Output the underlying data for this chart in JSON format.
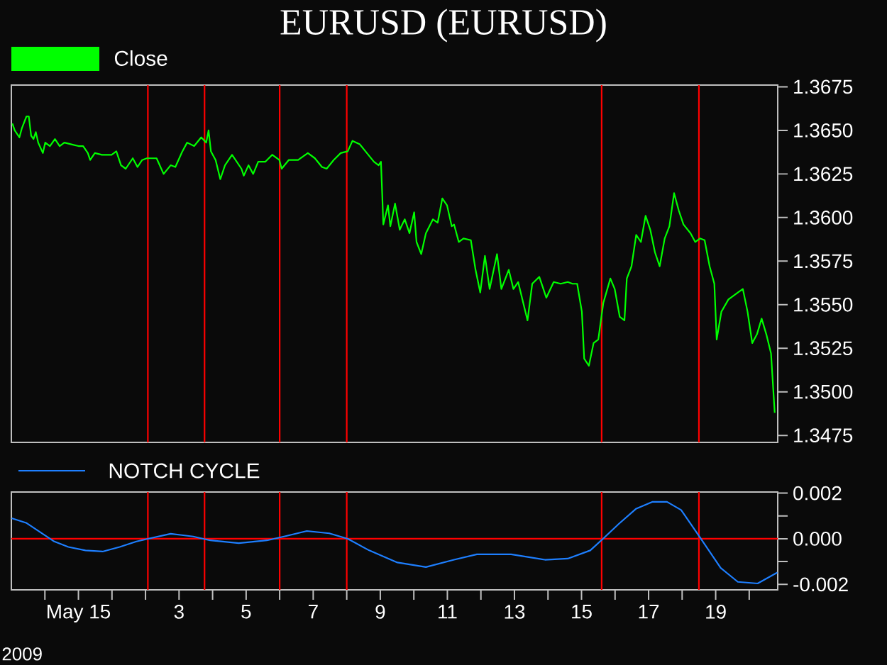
{
  "chart_data": [
    {
      "type": "line",
      "title": "EURUSD (EURUSD)",
      "x": [
        -1.97,
        -1.9,
        -1.76,
        -1.69,
        -1.55,
        -1.48,
        -1.41,
        -1.34,
        -1.27,
        -1.2,
        -1.06,
        -0.99,
        -0.85,
        -0.7,
        -0.56,
        -0.42,
        -0.21,
        0,
        0.14,
        0.28,
        0.35,
        0.49,
        0.7,
        0.99,
        1.13,
        1.27,
        1.41,
        1.62,
        1.76,
        1.9,
        2.04,
        2.33,
        2.54,
        2.75,
        2.89,
        3.1,
        3.24,
        3.45,
        3.66,
        3.81,
        3.88,
        3.95,
        4.09,
        4.23,
        4.37,
        4.58,
        4.72,
        4.86,
        4.93,
        5.07,
        5.21,
        5.36,
        5.57,
        5.78,
        5.99,
        6.06,
        6.27,
        6.55,
        6.84,
        7.05,
        7.26,
        7.4,
        7.61,
        7.82,
        8.03,
        8.17,
        8.39,
        8.6,
        8.81,
        8.95,
        9.02,
        9.06,
        9.09,
        9.23,
        9.3,
        9.44,
        9.58,
        9.73,
        9.87,
        10.01,
        10.08,
        10.22,
        10.36,
        10.57,
        10.71,
        10.85,
        10.99,
        11.13,
        11.2,
        11.34,
        11.48,
        11.7,
        11.84,
        11.98,
        12.12,
        12.26,
        12.48,
        12.61,
        12.83,
        12.97,
        13.11,
        13.39,
        13.53,
        13.74,
        13.95,
        14.17,
        14.38,
        14.59,
        14.73,
        14.87,
        15.01,
        15.08,
        15.22,
        15.36,
        15.5,
        15.65,
        15.86,
        15.99,
        16.14,
        16.28,
        16.35,
        16.49,
        16.63,
        16.77,
        16.91,
        17.05,
        17.19,
        17.33,
        17.48,
        17.62,
        17.76,
        17.9,
        18.04,
        18.25,
        18.39,
        18.53,
        18.67,
        18.82,
        18.96,
        19.03,
        19.17,
        19.38,
        19.66,
        19.81,
        19.95,
        20.09,
        20.23,
        20.37,
        20.51,
        20.65,
        20.76
      ],
      "series": [
        {
          "name": "Close",
          "color": "#00ff00",
          "values": [
            1.3654,
            1.365,
            1.3646,
            1.3651,
            1.3658,
            1.3658,
            1.3647,
            1.3645,
            1.3649,
            1.3643,
            1.3637,
            1.3643,
            1.3641,
            1.3645,
            1.3641,
            1.3643,
            1.3642,
            1.3641,
            1.3641,
            1.3637,
            1.3633,
            1.3637,
            1.3636,
            1.3636,
            1.3638,
            1.363,
            1.3628,
            1.3634,
            1.3629,
            1.3633,
            1.3634,
            1.3634,
            1.3625,
            1.363,
            1.3629,
            1.3638,
            1.3643,
            1.3641,
            1.3646,
            1.3643,
            1.365,
            1.3638,
            1.3633,
            1.3622,
            1.363,
            1.3636,
            1.3632,
            1.3628,
            1.3624,
            1.363,
            1.3625,
            1.3632,
            1.3632,
            1.3636,
            1.3633,
            1.3628,
            1.3633,
            1.3633,
            1.3637,
            1.3634,
            1.3629,
            1.3628,
            1.3633,
            1.3637,
            1.3638,
            1.3644,
            1.3642,
            1.3637,
            1.3632,
            1.363,
            1.3632,
            1.3612,
            1.3596,
            1.3607,
            1.3595,
            1.3608,
            1.3593,
            1.3599,
            1.3591,
            1.3603,
            1.3586,
            1.3579,
            1.3591,
            1.3599,
            1.3597,
            1.3611,
            1.3607,
            1.3595,
            1.3596,
            1.3586,
            1.3588,
            1.3587,
            1.357,
            1.3557,
            1.3578,
            1.3559,
            1.3579,
            1.3559,
            1.357,
            1.3559,
            1.3563,
            1.3541,
            1.3562,
            1.3566,
            1.3554,
            1.3563,
            1.3562,
            1.3563,
            1.3562,
            1.3562,
            1.3546,
            1.3519,
            1.3515,
            1.3528,
            1.353,
            1.3551,
            1.3565,
            1.3559,
            1.3543,
            1.3541,
            1.3565,
            1.3572,
            1.359,
            1.3586,
            1.3601,
            1.3593,
            1.358,
            1.3572,
            1.3588,
            1.3595,
            1.3614,
            1.3604,
            1.3596,
            1.3591,
            1.3586,
            1.3588,
            1.3587,
            1.3572,
            1.3562,
            1.353,
            1.3546,
            1.3553,
            1.3557,
            1.3559,
            1.3546,
            1.3528,
            1.3533,
            1.3542,
            1.3533,
            1.3522,
            1.3488
          ]
        }
      ],
      "xlim": [
        -2,
        20.85
      ],
      "ylim": [
        1.3471,
        1.3676
      ],
      "yticks": [
        {
          "value": 1.3475,
          "label": "1.3475"
        },
        {
          "value": 1.35,
          "label": "1.3500"
        },
        {
          "value": 1.3525,
          "label": "1.3525"
        },
        {
          "value": 1.355,
          "label": "1.3550"
        },
        {
          "value": 1.3575,
          "label": "1.3575"
        },
        {
          "value": 1.36,
          "label": "1.3600"
        },
        {
          "value": 1.3625,
          "label": "1.3625"
        },
        {
          "value": 1.365,
          "label": "1.3650"
        },
        {
          "value": 1.3675,
          "label": "1.3675"
        }
      ],
      "ref_lines": [
        {
          "axis": "x",
          "value": 2.07,
          "color": "#ff0000"
        },
        {
          "axis": "x",
          "value": 3.76,
          "color": "#ff0000"
        },
        {
          "axis": "x",
          "value": 6.0,
          "color": "#ff0000"
        },
        {
          "axis": "x",
          "value": 8.0,
          "color": "#ff0000"
        },
        {
          "axis": "x",
          "value": 15.6,
          "color": "#ff0000"
        },
        {
          "axis": "x",
          "value": 18.5,
          "color": "#ff0000"
        }
      ],
      "legend": "top left",
      "tick_labels": "y"
    },
    {
      "type": "line",
      "annotations": [
        "2009"
      ],
      "x": [
        -1.99,
        -1.56,
        -1.14,
        -0.72,
        -0.3,
        0.21,
        0.72,
        1.23,
        1.73,
        2.07,
        2.75,
        3.42,
        3.93,
        4.78,
        5.62,
        6.13,
        6.81,
        7.48,
        8.03,
        8.67,
        9.51,
        10.36,
        11.2,
        11.88,
        12.9,
        13.91,
        14.59,
        15.26,
        15.64,
        16.11,
        16.62,
        17.12,
        17.55,
        17.97,
        18.56,
        19.15,
        19.66,
        20.25,
        20.84
      ],
      "series": [
        {
          "name": "NOTCH CYCLE",
          "color": "#1e7fff",
          "values": [
            0.0009,
            0.0007,
            0.00029,
            -0.00012,
            -0.00036,
            -0.00051,
            -0.00056,
            -0.00036,
            -0.00012,
            0,
            0.00022,
            0.0001,
            -7e-05,
            -0.00019,
            -7e-05,
            0.0001,
            0.00034,
            0.00024,
            0,
            -0.00051,
            -0.00104,
            -0.00124,
            -0.00092,
            -0.00068,
            -0.00068,
            -0.00092,
            -0.00087,
            -0.00051,
            0,
            0.00065,
            0.00131,
            0.00162,
            0.00162,
            0.00126,
            0,
            -0.00128,
            -0.00189,
            -0.00196,
            -0.00148
          ]
        }
      ],
      "xlim": [
        -2,
        20.85
      ],
      "ylim": [
        -0.00224,
        0.00205
      ],
      "xticks": [
        {
          "value": -1,
          "label": null
        },
        {
          "value": 0,
          "label": "May 15"
        },
        {
          "value": 1,
          "label": null
        },
        {
          "value": 2,
          "label": null
        },
        {
          "value": 3,
          "label": "3"
        },
        {
          "value": 4,
          "label": null
        },
        {
          "value": 5,
          "label": "5"
        },
        {
          "value": 6,
          "label": null
        },
        {
          "value": 7,
          "label": "7"
        },
        {
          "value": 8,
          "label": null
        },
        {
          "value": 9,
          "label": "9"
        },
        {
          "value": 10,
          "label": null
        },
        {
          "value": 11,
          "label": "11"
        },
        {
          "value": 12,
          "label": null
        },
        {
          "value": 13,
          "label": "13"
        },
        {
          "value": 14,
          "label": null
        },
        {
          "value": 15,
          "label": "15"
        },
        {
          "value": 16,
          "label": null
        },
        {
          "value": 17,
          "label": "17"
        },
        {
          "value": 18,
          "label": null
        },
        {
          "value": 19,
          "label": "19"
        },
        {
          "value": 20,
          "label": null
        }
      ],
      "yticks": [
        {
          "value": -0.002,
          "label": "-0.002"
        },
        {
          "value": -0.001,
          "label": null
        },
        {
          "value": 0,
          "label": "0.000"
        },
        {
          "value": 0.001,
          "label": null
        },
        {
          "value": 0.002,
          "label": "0.002"
        }
      ],
      "ref_lines": [
        {
          "axis": "x",
          "value": 2.07,
          "color": "#ff0000"
        },
        {
          "axis": "x",
          "value": 3.76,
          "color": "#ff0000"
        },
        {
          "axis": "x",
          "value": 6.0,
          "color": "#ff0000"
        },
        {
          "axis": "x",
          "value": 8.0,
          "color": "#ff0000"
        },
        {
          "axis": "x",
          "value": 15.6,
          "color": "#ff0000"
        },
        {
          "axis": "x",
          "value": 18.5,
          "color": "#ff0000"
        },
        {
          "axis": "y",
          "value": 0,
          "color": "#ff0000"
        }
      ],
      "legend": "top left"
    }
  ]
}
